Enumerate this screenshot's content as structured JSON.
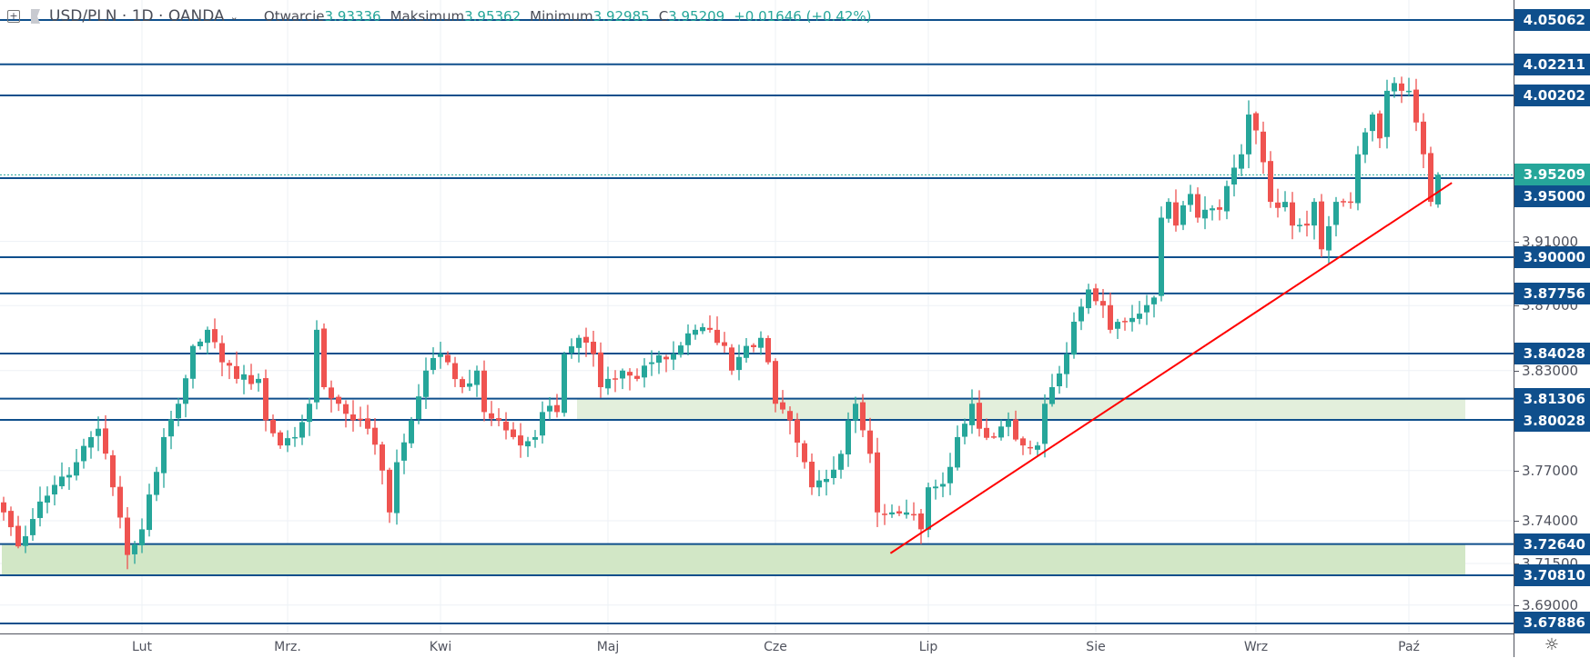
{
  "header": {
    "symbol": "USD/PLN · 1D · OANDA",
    "open_label": "Otwarcie",
    "open": "3.93336",
    "high_label": "Maksimum",
    "high": "3.95362",
    "low_label": "Minimum",
    "low": "3.92985",
    "close_label": "C",
    "close": "3.95209",
    "change": "+0.01646 (+0.42%)"
  },
  "colors": {
    "up": "#26a69a",
    "down": "#ef5350",
    "level": "#0f4f8c",
    "zone_upper": "#e3efdc",
    "zone_lower": "#d2e7c6",
    "trend": "#ff0000",
    "current": "#26a69a"
  },
  "chart_data": {
    "type": "candlestick",
    "title": "USD/PLN 1D OANDA",
    "ylim": [
      3.672,
      4.063
    ],
    "current_price": "3.95209",
    "levels": [
      "4.05062",
      "4.02211",
      "4.00202",
      "3.95000",
      "3.90000",
      "3.87756",
      "3.84028",
      "3.81306",
      "3.80028",
      "3.72640",
      "3.70810",
      "3.67886"
    ],
    "grid_ticks": [
      "3.91000",
      "3.87000",
      "3.83000",
      "3.77000",
      "3.74000",
      "3.71500",
      "3.69000"
    ],
    "xticks": [
      {
        "label": "Lut",
        "index": 19
      },
      {
        "label": "Mrz.",
        "index": 39
      },
      {
        "label": "Kwi",
        "index": 60
      },
      {
        "label": "Maj",
        "index": 83
      },
      {
        "label": "Cze",
        "index": 106
      },
      {
        "label": "Lip",
        "index": 127
      },
      {
        "label": "Sie",
        "index": 150
      },
      {
        "label": "Wrz",
        "index": 172
      },
      {
        "label": "Paź",
        "index": 193
      }
    ],
    "zones": [
      {
        "from_index": 79,
        "to_index": 201,
        "top": 3.81306,
        "bottom": 3.80028,
        "kind": "upper"
      },
      {
        "from_index": 0,
        "to_index": 201,
        "top": 3.7264,
        "bottom": 3.7081,
        "kind": "lower"
      }
    ],
    "trendline": {
      "start": [
        121.8,
        3.721
      ],
      "end": [
        198.9,
        3.947
      ]
    },
    "close_keyframes": [
      [
        0,
        3.745
      ],
      [
        2,
        3.725
      ],
      [
        6,
        3.755
      ],
      [
        10,
        3.775
      ],
      [
        13,
        3.795
      ],
      [
        15,
        3.76
      ],
      [
        17,
        3.72
      ],
      [
        19,
        3.735
      ],
      [
        22,
        3.79
      ],
      [
        24,
        3.81
      ],
      [
        26,
        3.845
      ],
      [
        28,
        3.855
      ],
      [
        30,
        3.835
      ],
      [
        32,
        3.825
      ],
      [
        35,
        3.825
      ],
      [
        36,
        3.8
      ],
      [
        38,
        3.785
      ],
      [
        40,
        3.79
      ],
      [
        42,
        3.81
      ],
      [
        43,
        3.855
      ],
      [
        44,
        3.82
      ],
      [
        46,
        3.81
      ],
      [
        48,
        3.8
      ],
      [
        50,
        3.795
      ],
      [
        52,
        3.77
      ],
      [
        53,
        3.745
      ],
      [
        54,
        3.775
      ],
      [
        56,
        3.8
      ],
      [
        58,
        3.83
      ],
      [
        60,
        3.84
      ],
      [
        61,
        3.835
      ],
      [
        63,
        3.82
      ],
      [
        65,
        3.83
      ],
      [
        66,
        3.805
      ],
      [
        68,
        3.8
      ],
      [
        70,
        3.79
      ],
      [
        71,
        3.785
      ],
      [
        73,
        3.79
      ],
      [
        74,
        3.805
      ],
      [
        76,
        3.805
      ],
      [
        77,
        3.84
      ],
      [
        79,
        3.85
      ],
      [
        81,
        3.84
      ],
      [
        82,
        3.82
      ],
      [
        83,
        3.825
      ],
      [
        85,
        3.83
      ],
      [
        87,
        3.825
      ],
      [
        89,
        3.835
      ],
      [
        92,
        3.84
      ],
      [
        95,
        3.855
      ],
      [
        97,
        3.855
      ],
      [
        99,
        3.845
      ],
      [
        100,
        3.83
      ],
      [
        102,
        3.845
      ],
      [
        104,
        3.85
      ],
      [
        105,
        3.835
      ],
      [
        106,
        3.81
      ],
      [
        108,
        3.8
      ],
      [
        110,
        3.775
      ],
      [
        111,
        3.76
      ],
      [
        113,
        3.765
      ],
      [
        115,
        3.78
      ],
      [
        116,
        3.8
      ],
      [
        117,
        3.81
      ],
      [
        119,
        3.78
      ],
      [
        120,
        3.745
      ],
      [
        122,
        3.745
      ],
      [
        124,
        3.745
      ],
      [
        126,
        3.735
      ],
      [
        127,
        3.76
      ],
      [
        129,
        3.762
      ],
      [
        131,
        3.79
      ],
      [
        133,
        3.81
      ],
      [
        134,
        3.795
      ],
      [
        136,
        3.79
      ],
      [
        138,
        3.8
      ],
      [
        140,
        3.785
      ],
      [
        142,
        3.785
      ],
      [
        143,
        3.81
      ],
      [
        144,
        3.82
      ],
      [
        146,
        3.84
      ],
      [
        147,
        3.86
      ],
      [
        149,
        3.88
      ],
      [
        151,
        3.87
      ],
      [
        152,
        3.855
      ],
      [
        154,
        3.86
      ],
      [
        156,
        3.865
      ],
      [
        158,
        3.875
      ],
      [
        159,
        3.925
      ],
      [
        160,
        3.935
      ],
      [
        161,
        3.92
      ],
      [
        163,
        3.94
      ],
      [
        164,
        3.925
      ],
      [
        165,
        3.93
      ],
      [
        167,
        3.93
      ],
      [
        168,
        3.945
      ],
      [
        170,
        3.965
      ],
      [
        171,
        3.99
      ],
      [
        172,
        3.98
      ],
      [
        173,
        3.96
      ],
      [
        174,
        3.935
      ],
      [
        176,
        3.935
      ],
      [
        177,
        3.92
      ],
      [
        179,
        3.92
      ],
      [
        180,
        3.935
      ],
      [
        181,
        3.905
      ],
      [
        183,
        3.935
      ],
      [
        185,
        3.935
      ],
      [
        186,
        3.965
      ],
      [
        188,
        3.99
      ],
      [
        189,
        3.975
      ],
      [
        190,
        4.005
      ],
      [
        191,
        4.01
      ],
      [
        192,
        4.005
      ],
      [
        193,
        4.005
      ],
      [
        194,
        3.985
      ],
      [
        195,
        3.965
      ],
      [
        196,
        3.935
      ],
      [
        197,
        3.95209
      ]
    ]
  }
}
